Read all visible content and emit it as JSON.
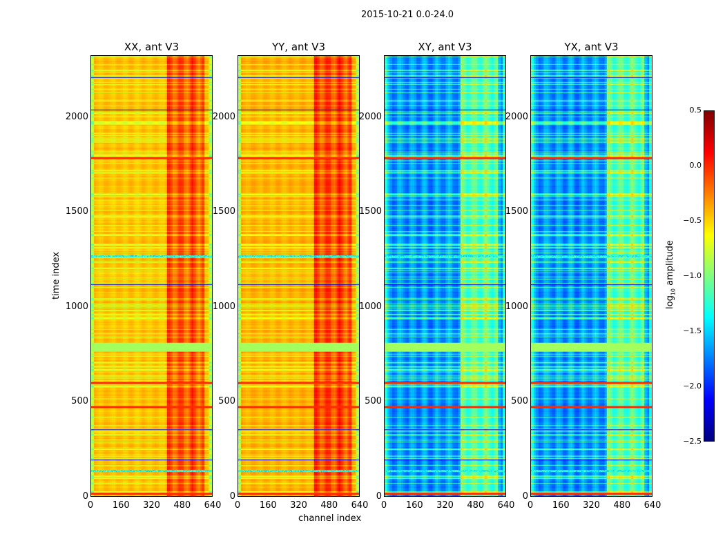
{
  "chart_data": [
    {
      "type": "heatmap",
      "title": "XX, ant V3",
      "xlim": [
        0,
        640
      ],
      "ylim": [
        0,
        2327
      ],
      "base_log10": -0.45,
      "band_channels": [
        400,
        600
      ],
      "band_log10": -0.15
    },
    {
      "type": "heatmap",
      "title": "YY, ant V3",
      "xlim": [
        0,
        640
      ],
      "ylim": [
        0,
        2327
      ],
      "base_log10": -0.4,
      "band_channels": [
        400,
        600
      ],
      "band_log10": -0.1
    },
    {
      "type": "heatmap",
      "title": "XY, ant V3",
      "xlim": [
        0,
        640
      ],
      "ylim": [
        0,
        2327
      ],
      "base_log10": -1.75,
      "band_channels": [
        400,
        600
      ],
      "band_log10": -1.2
    },
    {
      "type": "heatmap",
      "title": "YX, ant V3",
      "xlim": [
        0,
        640
      ],
      "ylim": [
        0,
        2327
      ],
      "base_log10": -1.75,
      "band_channels": [
        400,
        600
      ],
      "band_log10": -1.2
    }
  ],
  "suptitle": "2015-10-21 0.0-24.0",
  "xlabel": "channel index",
  "ylabel": "time index",
  "xticks": [
    "0",
    "160",
    "320",
    "480",
    "640"
  ],
  "xtick_values": [
    0,
    160,
    320,
    480,
    640
  ],
  "yticks": [
    "0",
    "500",
    "1000",
    "1500",
    "2000"
  ],
  "ytick_values": [
    0,
    500,
    1000,
    1500,
    2000
  ],
  "colorbar": {
    "label": "log10 amplitude",
    "label_main": "log",
    "label_sub": "10",
    "label_rest": " amplitude",
    "range": [
      -2.5,
      0.5
    ],
    "ticks": [
      "0.5",
      "0.0",
      "−0.5",
      "−1.0",
      "−1.5",
      "−2.0",
      "−2.5"
    ],
    "tick_values": [
      0.5,
      0.0,
      -0.5,
      -1.0,
      -1.5,
      -2.0,
      -2.5
    ],
    "colormap": "jet"
  },
  "features": {
    "red_rows": [
      10,
      470,
      595,
      1785
    ],
    "blue_rows": [
      190,
      350,
      1115,
      2040,
      2210
    ],
    "green_band": [
      760,
      810
    ],
    "flag_rows": [
      130,
      1265
    ]
  }
}
